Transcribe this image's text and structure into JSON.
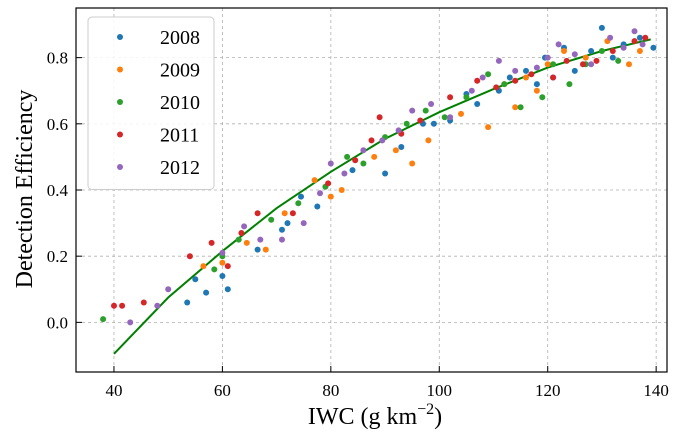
{
  "chart_data": {
    "type": "scatter",
    "title": "",
    "xlabel": "IWC (g km",
    "xlabel_sup": "−2",
    "xlabel_close": ")",
    "ylabel": "Detection Efficiency",
    "xlim": [
      33,
      142
    ],
    "ylim": [
      -0.15,
      0.95
    ],
    "xticks": [
      40,
      60,
      80,
      100,
      120,
      140
    ],
    "yticks": [
      0.0,
      0.2,
      0.4,
      0.6,
      0.8
    ],
    "grid": true,
    "legend_position": "top-left",
    "series": [
      {
        "name": "2008",
        "color": "#1f77b4",
        "points": [
          [
            53.5,
            0.06
          ],
          [
            55,
            0.13
          ],
          [
            57,
            0.09
          ],
          [
            60,
            0.14
          ],
          [
            61,
            0.1
          ],
          [
            66.5,
            0.22
          ],
          [
            71,
            0.28
          ],
          [
            72,
            0.3
          ],
          [
            74.5,
            0.38
          ],
          [
            77.5,
            0.35
          ],
          [
            84,
            0.46
          ],
          [
            90,
            0.45
          ],
          [
            93,
            0.53
          ],
          [
            97,
            0.6
          ],
          [
            99,
            0.6
          ],
          [
            102,
            0.61
          ],
          [
            105,
            0.69
          ],
          [
            107,
            0.66
          ],
          [
            111,
            0.7
          ],
          [
            113,
            0.74
          ],
          [
            116,
            0.76
          ],
          [
            118,
            0.72
          ],
          [
            119.5,
            0.8
          ],
          [
            121,
            0.74
          ],
          [
            123,
            0.83
          ],
          [
            125,
            0.76
          ],
          [
            128,
            0.82
          ],
          [
            130,
            0.89
          ],
          [
            132,
            0.8
          ],
          [
            134,
            0.84
          ],
          [
            137,
            0.86
          ],
          [
            139.5,
            0.83
          ]
        ]
      },
      {
        "name": "2009",
        "color": "#ff7f0e",
        "points": [
          [
            56.5,
            0.17
          ],
          [
            60,
            0.18
          ],
          [
            64.5,
            0.24
          ],
          [
            68,
            0.22
          ],
          [
            71.5,
            0.33
          ],
          [
            77,
            0.43
          ],
          [
            80,
            0.38
          ],
          [
            82,
            0.4
          ],
          [
            88,
            0.5
          ],
          [
            92,
            0.52
          ],
          [
            95,
            0.48
          ],
          [
            98,
            0.55
          ],
          [
            104,
            0.63
          ],
          [
            109,
            0.59
          ],
          [
            112,
            0.72
          ],
          [
            114,
            0.65
          ],
          [
            116,
            0.74
          ],
          [
            118,
            0.7
          ],
          [
            120,
            0.78
          ],
          [
            123,
            0.82
          ],
          [
            127,
            0.8
          ],
          [
            131,
            0.85
          ],
          [
            135,
            0.78
          ],
          [
            137,
            0.82
          ]
        ]
      },
      {
        "name": "2010",
        "color": "#2ca02c",
        "points": [
          [
            38,
            0.01
          ],
          [
            58.5,
            0.16
          ],
          [
            60,
            0.2
          ],
          [
            63,
            0.25
          ],
          [
            69,
            0.31
          ],
          [
            74,
            0.36
          ],
          [
            79,
            0.41
          ],
          [
            83,
            0.5
          ],
          [
            86,
            0.48
          ],
          [
            90,
            0.56
          ],
          [
            94,
            0.6
          ],
          [
            97.5,
            0.64
          ],
          [
            101,
            0.62
          ],
          [
            105,
            0.68
          ],
          [
            109,
            0.75
          ],
          [
            112,
            0.72
          ],
          [
            115,
            0.65
          ],
          [
            119,
            0.68
          ],
          [
            121,
            0.78
          ],
          [
            124,
            0.72
          ],
          [
            127,
            0.78
          ],
          [
            130,
            0.82
          ],
          [
            133,
            0.79
          ]
        ]
      },
      {
        "name": "2011",
        "color": "#d62728",
        "points": [
          [
            40,
            0.05
          ],
          [
            41.5,
            0.05
          ],
          [
            45.5,
            0.06
          ],
          [
            54,
            0.2
          ],
          [
            58,
            0.24
          ],
          [
            61,
            0.17
          ],
          [
            63.5,
            0.27
          ],
          [
            66.5,
            0.33
          ],
          [
            73,
            0.33
          ],
          [
            79.5,
            0.42
          ],
          [
            84.5,
            0.49
          ],
          [
            87.5,
            0.55
          ],
          [
            89,
            0.62
          ],
          [
            93,
            0.57
          ],
          [
            96.5,
            0.61
          ],
          [
            102,
            0.68
          ],
          [
            107,
            0.73
          ],
          [
            110.5,
            0.71
          ],
          [
            114,
            0.73
          ],
          [
            117,
            0.75
          ],
          [
            121,
            0.74
          ],
          [
            123.5,
            0.79
          ],
          [
            126.5,
            0.78
          ],
          [
            129,
            0.79
          ],
          [
            132,
            0.82
          ],
          [
            136,
            0.85
          ],
          [
            138,
            0.86
          ]
        ]
      },
      {
        "name": "2012",
        "color": "#9467bd",
        "points": [
          [
            43,
            0.0
          ],
          [
            48,
            0.05
          ],
          [
            50,
            0.1
          ],
          [
            60,
            0.21
          ],
          [
            64,
            0.29
          ],
          [
            67,
            0.25
          ],
          [
            71,
            0.25
          ],
          [
            75,
            0.3
          ],
          [
            78,
            0.39
          ],
          [
            80,
            0.48
          ],
          [
            82.5,
            0.45
          ],
          [
            86,
            0.52
          ],
          [
            89.5,
            0.55
          ],
          [
            92.5,
            0.58
          ],
          [
            95,
            0.64
          ],
          [
            98.5,
            0.66
          ],
          [
            102,
            0.62
          ],
          [
            106,
            0.7
          ],
          [
            108,
            0.74
          ],
          [
            111,
            0.79
          ],
          [
            114,
            0.76
          ],
          [
            118,
            0.77
          ],
          [
            120,
            0.8
          ],
          [
            122,
            0.84
          ],
          [
            125,
            0.81
          ],
          [
            128,
            0.78
          ],
          [
            131.5,
            0.86
          ],
          [
            134,
            0.83
          ],
          [
            136,
            0.88
          ],
          [
            137.5,
            0.84
          ]
        ]
      }
    ],
    "fit_line": {
      "color": "#008000",
      "x": [
        40,
        50,
        60,
        70,
        80,
        90,
        100,
        110,
        120,
        130,
        139
      ],
      "y": [
        -0.095,
        0.075,
        0.215,
        0.345,
        0.455,
        0.555,
        0.635,
        0.705,
        0.77,
        0.82,
        0.855
      ]
    }
  }
}
